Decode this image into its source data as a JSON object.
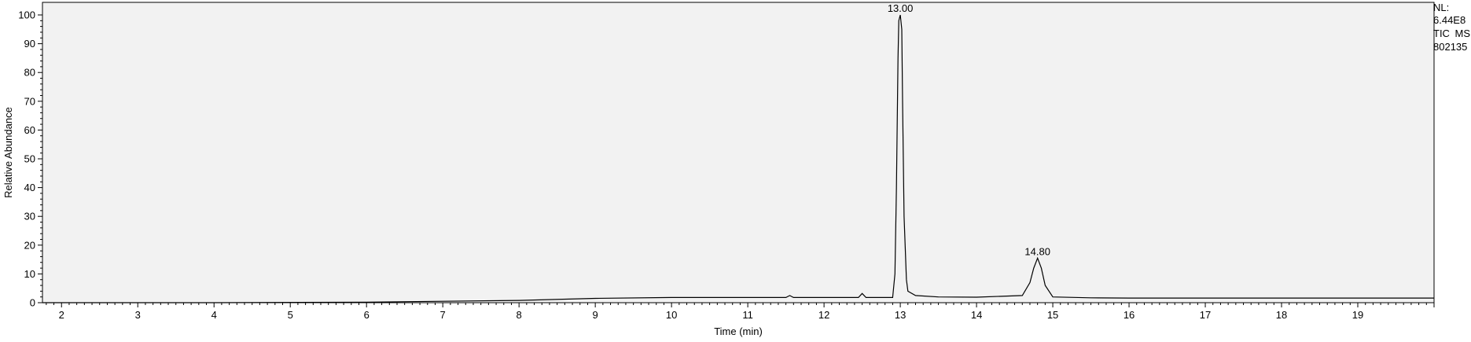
{
  "chart_data": {
    "type": "line",
    "title": "",
    "xlabel": "Time (min)",
    "ylabel": "Relative Abundance",
    "xlim": [
      1.75,
      20.0
    ],
    "ylim": [
      0,
      100
    ],
    "x_ticks": [
      2,
      3,
      4,
      5,
      6,
      7,
      8,
      9,
      10,
      11,
      12,
      13,
      14,
      15,
      16,
      17,
      18,
      19
    ],
    "y_ticks": [
      0,
      10,
      20,
      30,
      40,
      50,
      60,
      70,
      80,
      90,
      100
    ],
    "grid": false,
    "legend": "none",
    "colors": {
      "plot_background": "#f2f2f2",
      "trace": "#000000"
    },
    "series": [
      {
        "x": [
          1.75,
          4.0,
          6.0,
          7.0,
          8.0,
          9.0,
          10.0,
          11.0,
          11.5,
          11.55,
          11.6,
          12.0,
          12.45,
          12.5,
          12.55,
          12.9,
          12.93,
          12.95,
          12.97,
          12.98,
          13.0,
          13.02,
          13.03,
          13.05,
          13.08,
          13.1,
          13.2,
          13.5,
          14.0,
          14.6,
          14.7,
          14.75,
          14.8,
          14.85,
          14.9,
          15.0,
          15.5,
          16.0,
          20.0
        ],
        "y": [
          0,
          0,
          0.2,
          0.5,
          0.8,
          1.5,
          1.8,
          1.8,
          1.8,
          2.5,
          1.8,
          1.8,
          1.8,
          3.2,
          1.8,
          1.8,
          10,
          40,
          85,
          98,
          100,
          95,
          70,
          30,
          8,
          4,
          2.5,
          2.0,
          1.9,
          2.5,
          7,
          12,
          15.5,
          12,
          6,
          2.0,
          1.7,
          1.6,
          1.6
        ]
      }
    ],
    "annotations": [
      {
        "text": "13.00",
        "x": 13.0,
        "y": 100
      },
      {
        "text": "14.80",
        "x": 14.8,
        "y": 15.5
      }
    ]
  },
  "info": {
    "line1": "NL:",
    "line2": "6.44E8",
    "line3": "TIC  MS",
    "line4": "802135"
  }
}
